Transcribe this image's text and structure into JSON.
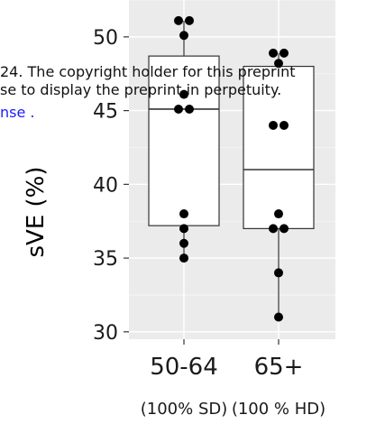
{
  "chart_data": {
    "type": "box",
    "ylabel": "sVE (%)",
    "ylim": [
      29.5,
      52.5
    ],
    "yticks": [
      30,
      35,
      40,
      45,
      50
    ],
    "grid": true,
    "categories": [
      "50-64",
      "65+"
    ],
    "sublabels": [
      "(100% SD)",
      "(100 % HD)"
    ],
    "boxes": [
      {
        "category": "50-64",
        "q1": 37.2,
        "median": 45.1,
        "q3": 48.7,
        "whisker_low": 35.0,
        "whisker_high": 51.1
      },
      {
        "category": "65+",
        "q1": 37.0,
        "median": 41.0,
        "q3": 48.0,
        "whisker_low": 31.0,
        "whisker_high": 48.9
      }
    ],
    "points": [
      {
        "category": "50-64",
        "values": [
          51.1,
          51.1,
          50.1,
          46.1,
          45.1,
          45.1,
          38.0,
          37.0,
          36.0,
          35.0
        ]
      },
      {
        "category": "65+",
        "values": [
          48.9,
          48.9,
          48.2,
          44.0,
          44.0,
          38.0,
          37.0,
          37.0,
          34.0,
          31.0
        ]
      }
    ],
    "colors": {
      "panel": "#ebebeb",
      "grid_major": "#ffffff",
      "box_fill": "#ffffff",
      "box_stroke": "#333333",
      "point": "#000000"
    }
  },
  "overlay": {
    "line1": "24. The copyright holder for this preprint",
    "line2": "se to display the preprint in perpetuity.",
    "line3": "nse .",
    "link_color": "#1a1aff"
  }
}
